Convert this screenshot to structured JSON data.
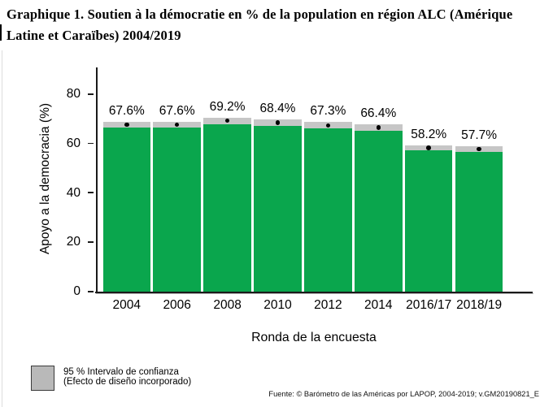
{
  "caption": {
    "line1": "Graphique 1. Soutien à la démocratie en % de la population en région ALC (Amérique",
    "line2": "Latine et Caraïbes) 2004/2019"
  },
  "chart_data": {
    "type": "bar",
    "categories": [
      "2004",
      "2006",
      "2008",
      "2010",
      "2012",
      "2014",
      "2016/17",
      "2018/19"
    ],
    "values": [
      67.6,
      67.6,
      69.2,
      68.4,
      67.3,
      66.4,
      58.2,
      57.7
    ],
    "value_labels": [
      "67.6%",
      "67.6%",
      "69.2%",
      "68.4%",
      "67.3%",
      "66.4%",
      "58.2%",
      "57.7%"
    ],
    "ci_halfwidth": [
      1.3,
      1.3,
      1.3,
      1.3,
      1.3,
      1.3,
      1.1,
      1.1
    ],
    "title": "",
    "xlabel": "Ronda de la encuesta",
    "ylabel": "Apoyo a la democracia (%)",
    "ylim": [
      0,
      80
    ],
    "yticks": [
      0,
      20,
      40,
      60,
      80
    ],
    "bar_color": "#0aa64d",
    "ci_color": "#c6c6c6",
    "legend_position": "bottom-left",
    "grid": false
  },
  "legend": {
    "line1": "95 % Intervalo de confianza",
    "line2": "(Efecto de diseño incorporado)"
  },
  "source": "Fuente: © Barómetro de las Américas por LAPOP, 2004-2019; v.GM20190821_E"
}
